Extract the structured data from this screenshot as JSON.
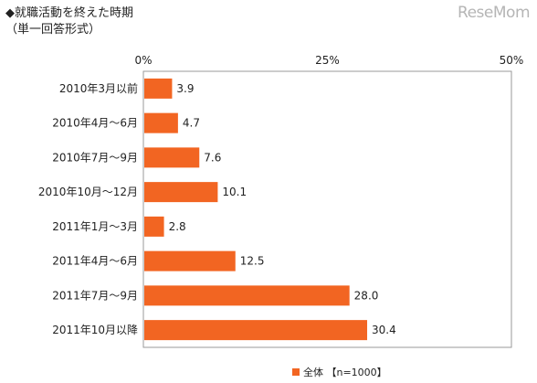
{
  "header": {
    "title": "◆就職活動を終えた時期",
    "subtitle": "（単一回答形式）",
    "watermark": "ReseMom"
  },
  "legend": {
    "label": "全体 【n=1000】"
  },
  "colors": {
    "bar": "#f26522",
    "frame": "#9a9a9a"
  },
  "chart_data": {
    "type": "bar",
    "orientation": "horizontal",
    "title": "◆就職活動を終えた時期",
    "subtitle": "（単一回答形式）",
    "categories": [
      "2010年3月以前",
      "2010年4月～6月",
      "2010年7月～9月",
      "2010年10月～12月",
      "2011年1月～3月",
      "2011年4月～6月",
      "2011年7月～9月",
      "2011年10月以降"
    ],
    "series": [
      {
        "name": "全体 【n=1000】",
        "values": [
          3.9,
          4.7,
          7.6,
          10.1,
          2.8,
          12.5,
          28.0,
          30.4
        ]
      }
    ],
    "value_labels": [
      "3.9",
      "4.7",
      "7.6",
      "10.1",
      "2.8",
      "12.5",
      "28.0",
      "30.4"
    ],
    "xlim": [
      0,
      50
    ],
    "x_ticks": [
      "0%",
      "25%",
      "50%"
    ],
    "x_tick_values": [
      0,
      25,
      50
    ],
    "xlabel": "",
    "ylabel": "",
    "grid": false,
    "legend_position": "bottom"
  }
}
